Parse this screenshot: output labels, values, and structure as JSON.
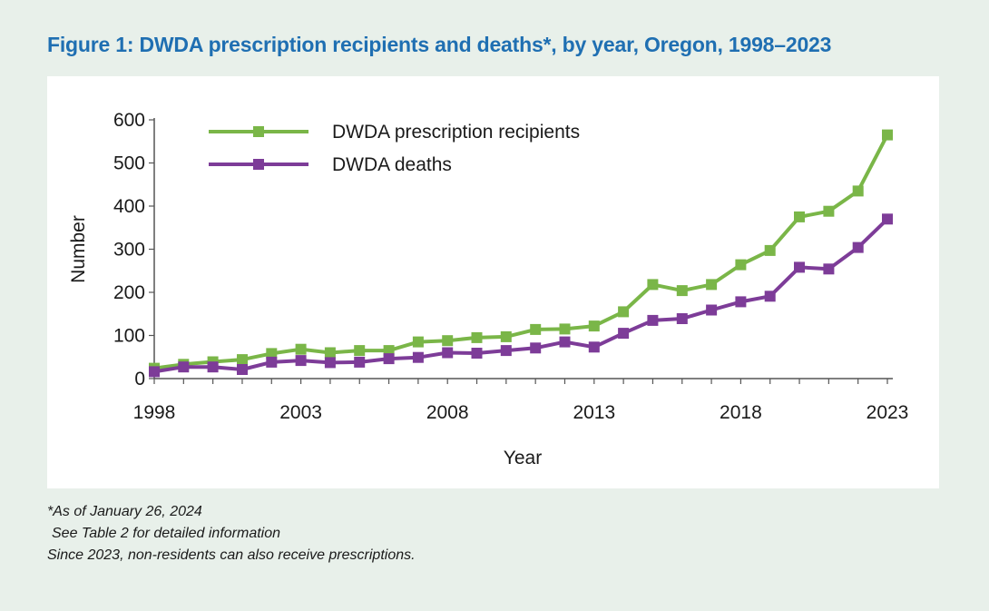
{
  "title": "Figure 1: DWDA prescription recipients and deaths*, by year, Oregon, 1998–2023",
  "footnotes": [
    "*As of January 26, 2024",
    "See Table 2 for detailed information",
    "Since 2023, non-residents can also receive prescriptions."
  ],
  "chart_data": {
    "type": "line",
    "title": "Figure 1: DWDA prescription recipients and deaths*, by year, Oregon, 1998–2023",
    "xlabel": "Year",
    "ylabel": "Number",
    "x": [
      1998,
      1999,
      2000,
      2001,
      2002,
      2003,
      2004,
      2005,
      2006,
      2007,
      2008,
      2009,
      2010,
      2011,
      2012,
      2013,
      2014,
      2015,
      2016,
      2017,
      2018,
      2019,
      2020,
      2021,
      2022,
      2023
    ],
    "xticks": [
      "1998",
      "2003",
      "2008",
      "2013",
      "2018",
      "2023"
    ],
    "yticks": [
      "0",
      "100",
      "200",
      "300",
      "400",
      "500",
      "600"
    ],
    "ylim": [
      0,
      600
    ],
    "legend_position": "top-left",
    "series": [
      {
        "name": "DWDA prescription recipients",
        "color": "#7ab648",
        "values": [
          24,
          33,
          39,
          44,
          58,
          68,
          60,
          65,
          65,
          85,
          88,
          95,
          97,
          114,
          115,
          122,
          155,
          218,
          204,
          218,
          264,
          297,
          375,
          388,
          435,
          565
        ]
      },
      {
        "name": "DWDA deaths",
        "color": "#7d3c98",
        "values": [
          16,
          27,
          27,
          21,
          38,
          42,
          37,
          38,
          46,
          49,
          60,
          59,
          65,
          71,
          85,
          73,
          105,
          135,
          139,
          159,
          178,
          191,
          258,
          254,
          304,
          370
        ]
      }
    ]
  }
}
